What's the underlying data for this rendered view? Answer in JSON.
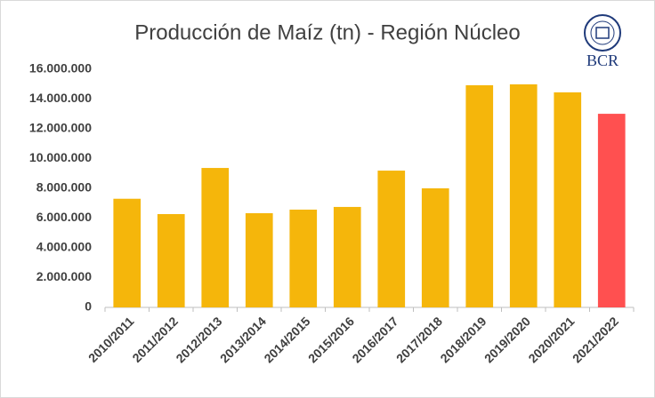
{
  "chart_data": {
    "type": "bar",
    "title": "Producción de Maíz (tn) - Región Núcleo",
    "logo": "BCR",
    "categories": [
      "2010/2011",
      "2011/2012",
      "2012/2013",
      "2013/2014",
      "2014/2015",
      "2015/2016",
      "2016/2017",
      "2017/2018",
      "2018/2019",
      "2019/2020",
      "2020/2021",
      "2021/2022"
    ],
    "values": [
      7300000,
      6270000,
      9370000,
      6330000,
      6570000,
      6750000,
      9190000,
      8000000,
      14930000,
      14990000,
      14450000,
      13010000
    ],
    "colors": [
      "#f5b60b",
      "#f5b60b",
      "#f5b60b",
      "#f5b60b",
      "#f5b60b",
      "#f5b60b",
      "#f5b60b",
      "#f5b60b",
      "#f5b60b",
      "#f5b60b",
      "#f5b60b",
      "#ff5050"
    ],
    "ylim": [
      0,
      16000000
    ],
    "yticks": [
      0,
      {
        "value": 2000000,
        "label": "2.000.000"
      },
      {
        "value": 4000000,
        "label": "4.000.000"
      },
      {
        "value": 6000000,
        "label": "6.000.000"
      },
      {
        "value": 8000000,
        "label": "8.000.000"
      },
      {
        "value": 10000000,
        "label": "10.000.000"
      },
      {
        "value": 12000000,
        "label": "12.000.000"
      },
      {
        "value": 14000000,
        "label": "14.000.000"
      },
      {
        "value": 16000000,
        "label": "16.000.000"
      }
    ],
    "grid": false
  }
}
